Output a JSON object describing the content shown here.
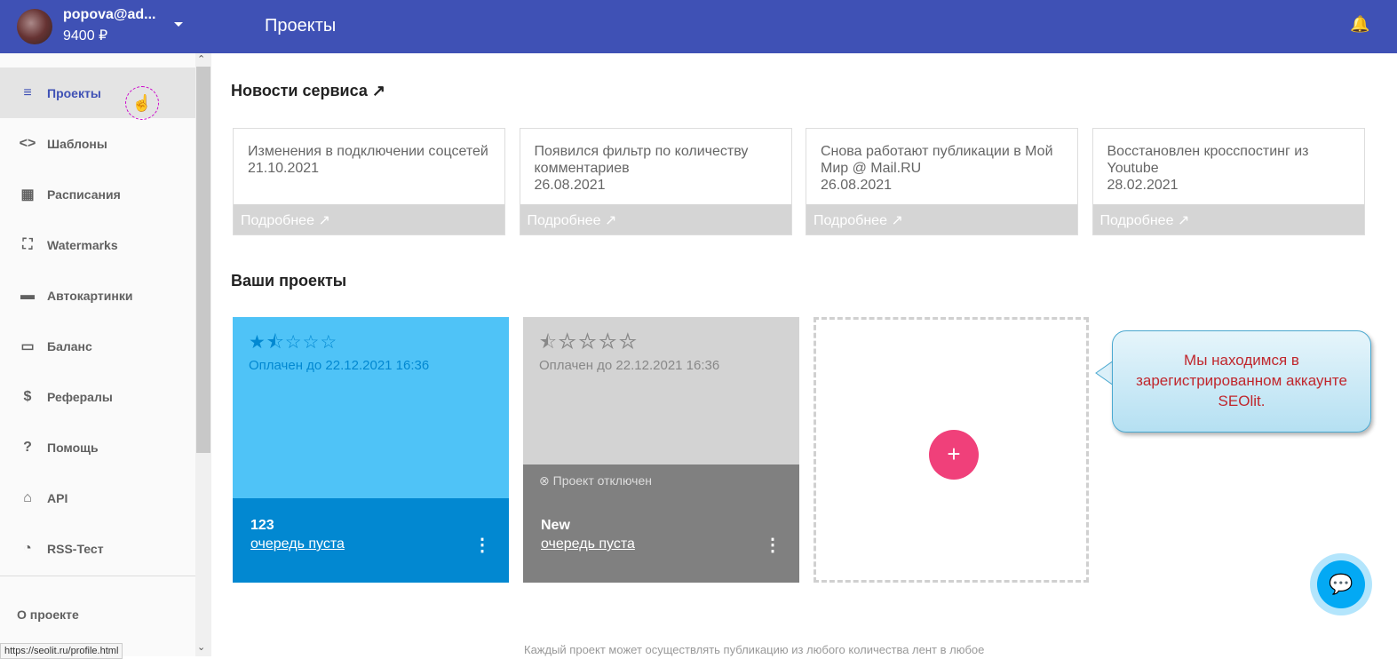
{
  "header": {
    "user": "popova@ad...",
    "balance": "9400 ₽",
    "title": "Проекты",
    "bell_icon": "bell-icon"
  },
  "sidebar": {
    "items": [
      {
        "label": "Проекты",
        "icon": "≡",
        "active": true
      },
      {
        "label": "Шаблоны",
        "icon": "<>"
      },
      {
        "label": "Расписания",
        "icon": "▦"
      },
      {
        "label": "Watermarks",
        "icon": "⛶"
      },
      {
        "label": "Автокартинки",
        "icon": "▬"
      },
      {
        "label": "Баланс",
        "icon": "▭"
      },
      {
        "label": "Рефералы",
        "icon": "$"
      },
      {
        "label": "Помощь",
        "icon": "?"
      },
      {
        "label": "API",
        "icon": "⌂"
      },
      {
        "label": "RSS-Тест",
        "icon": "◔"
      }
    ],
    "about": "О проекте"
  },
  "status_url": "https://seolit.ru/profile.html",
  "news": {
    "title": "Новости сервиса",
    "more": "Подробнее",
    "items": [
      {
        "title": "Изменения в подключении соцсетей",
        "date": "21.10.2021"
      },
      {
        "title": "Появился фильтр по количеству комментариев",
        "date": "26.08.2021"
      },
      {
        "title": "Снова работают публикации в Мой Мир @ Mail.RU",
        "date": "26.08.2021"
      },
      {
        "title": "Восстановлен кросспостинг из Youtube",
        "date": "28.02.2021"
      }
    ]
  },
  "projects": {
    "title": "Ваши проекты",
    "items": [
      {
        "name": "123",
        "rating": 1.5,
        "paid": "Оплачен до 22.12.2021 16:36",
        "queue": "очередь пуста",
        "color": "#4fc3f7",
        "bottom": "#0288d1"
      },
      {
        "name": "New",
        "rating": 0.5,
        "paid": "Оплачен до 22.12.2021 16:36",
        "queue": "очередь пуста",
        "status": "Проект отключен",
        "color": "#d3d3d3",
        "bottom": "#808080"
      }
    ],
    "add": "+"
  },
  "footer_text": "Каждый проект может осуществлять публикацию из любого количества лент в любое",
  "tooltip": "Мы находимся в зарегистрированном аккаунте SEOlit."
}
